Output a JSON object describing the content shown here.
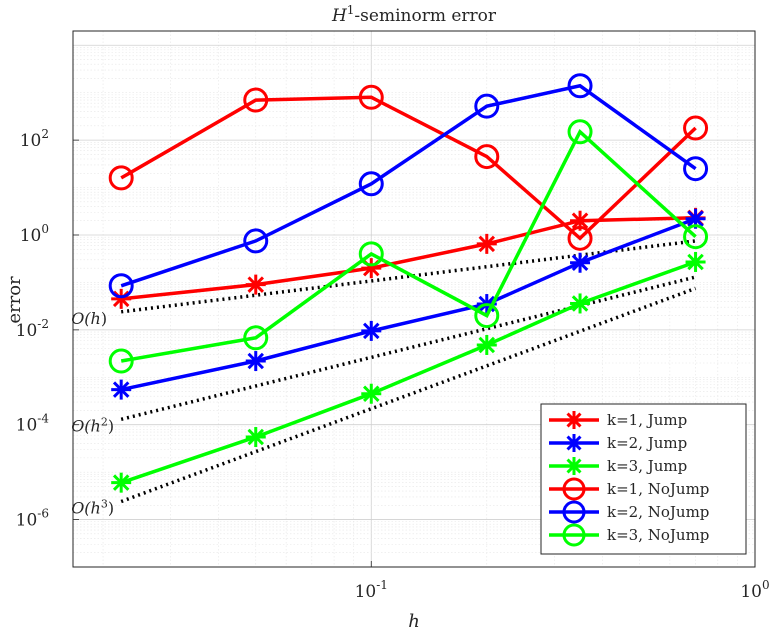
{
  "chart_data": {
    "type": "line",
    "title_base": "H",
    "title_sup": "1",
    "title_rest": "-seminorm error",
    "xlabel": "h",
    "ylabel": "error",
    "xscale": "log",
    "yscale": "log",
    "xlim": [
      0.0167,
      1.0
    ],
    "ylim": [
      1e-07,
      20000
    ],
    "grid": true,
    "grid_minor": true,
    "legend_position": "bottom-right",
    "x_ticks": [
      {
        "value": 0.1,
        "base": "10",
        "exp": "-1"
      },
      {
        "value": 1,
        "base": "10",
        "exp": "0"
      }
    ],
    "y_ticks": [
      {
        "value": 1e-06,
        "base": "10",
        "exp": "-6"
      },
      {
        "value": 0.0001,
        "base": "10",
        "exp": "-4"
      },
      {
        "value": 0.01,
        "base": "10",
        "exp": "-2"
      },
      {
        "value": 1,
        "base": "10",
        "exp": "0"
      },
      {
        "value": 100,
        "base": "10",
        "exp": "2"
      }
    ],
    "x": [
      0.0223,
      0.05,
      0.1,
      0.2,
      0.35,
      0.7
    ],
    "series": [
      {
        "name": "k=1, Jump",
        "color": "#ff0000",
        "marker": "asterisk",
        "values": [
          0.045,
          0.09,
          0.2,
          0.65,
          2.0,
          2.3
        ]
      },
      {
        "name": "k=2, Jump",
        "color": "#0000ff",
        "marker": "asterisk",
        "values": [
          0.00055,
          0.0022,
          0.0095,
          0.035,
          0.26,
          2.2
        ]
      },
      {
        "name": "k=3, Jump",
        "color": "#00ff00",
        "marker": "asterisk",
        "values": [
          6e-06,
          5.5e-05,
          0.00045,
          0.0048,
          0.036,
          0.27
        ]
      },
      {
        "name": "k=1, NoJump",
        "color": "#ff0000",
        "marker": "circle",
        "values": [
          16,
          700,
          800,
          45,
          0.85,
          180
        ]
      },
      {
        "name": "k=2, NoJump",
        "color": "#0000ff",
        "marker": "circle",
        "values": [
          0.085,
          0.75,
          12,
          520,
          1400,
          25
        ]
      },
      {
        "name": "k=3, NoJump",
        "color": "#00ff00",
        "marker": "circle",
        "values": [
          0.0022,
          0.0068,
          0.4,
          0.02,
          150,
          0.92
        ]
      }
    ],
    "reference_lines": [
      {
        "label_base": "O(h",
        "label_sup": "",
        "label_end": ")",
        "x": [
          0.0223,
          0.7
        ],
        "y": [
          0.024,
          0.75
        ]
      },
      {
        "label_base": "O(h",
        "label_sup": "2",
        "label_end": ")",
        "x": [
          0.0223,
          0.7
        ],
        "y": [
          0.00013,
          0.13
        ]
      },
      {
        "label_base": "O(h",
        "label_sup": "3",
        "label_end": ")",
        "x": [
          0.0223,
          0.7
        ],
        "y": [
          2.4e-06,
          0.075
        ]
      }
    ]
  }
}
